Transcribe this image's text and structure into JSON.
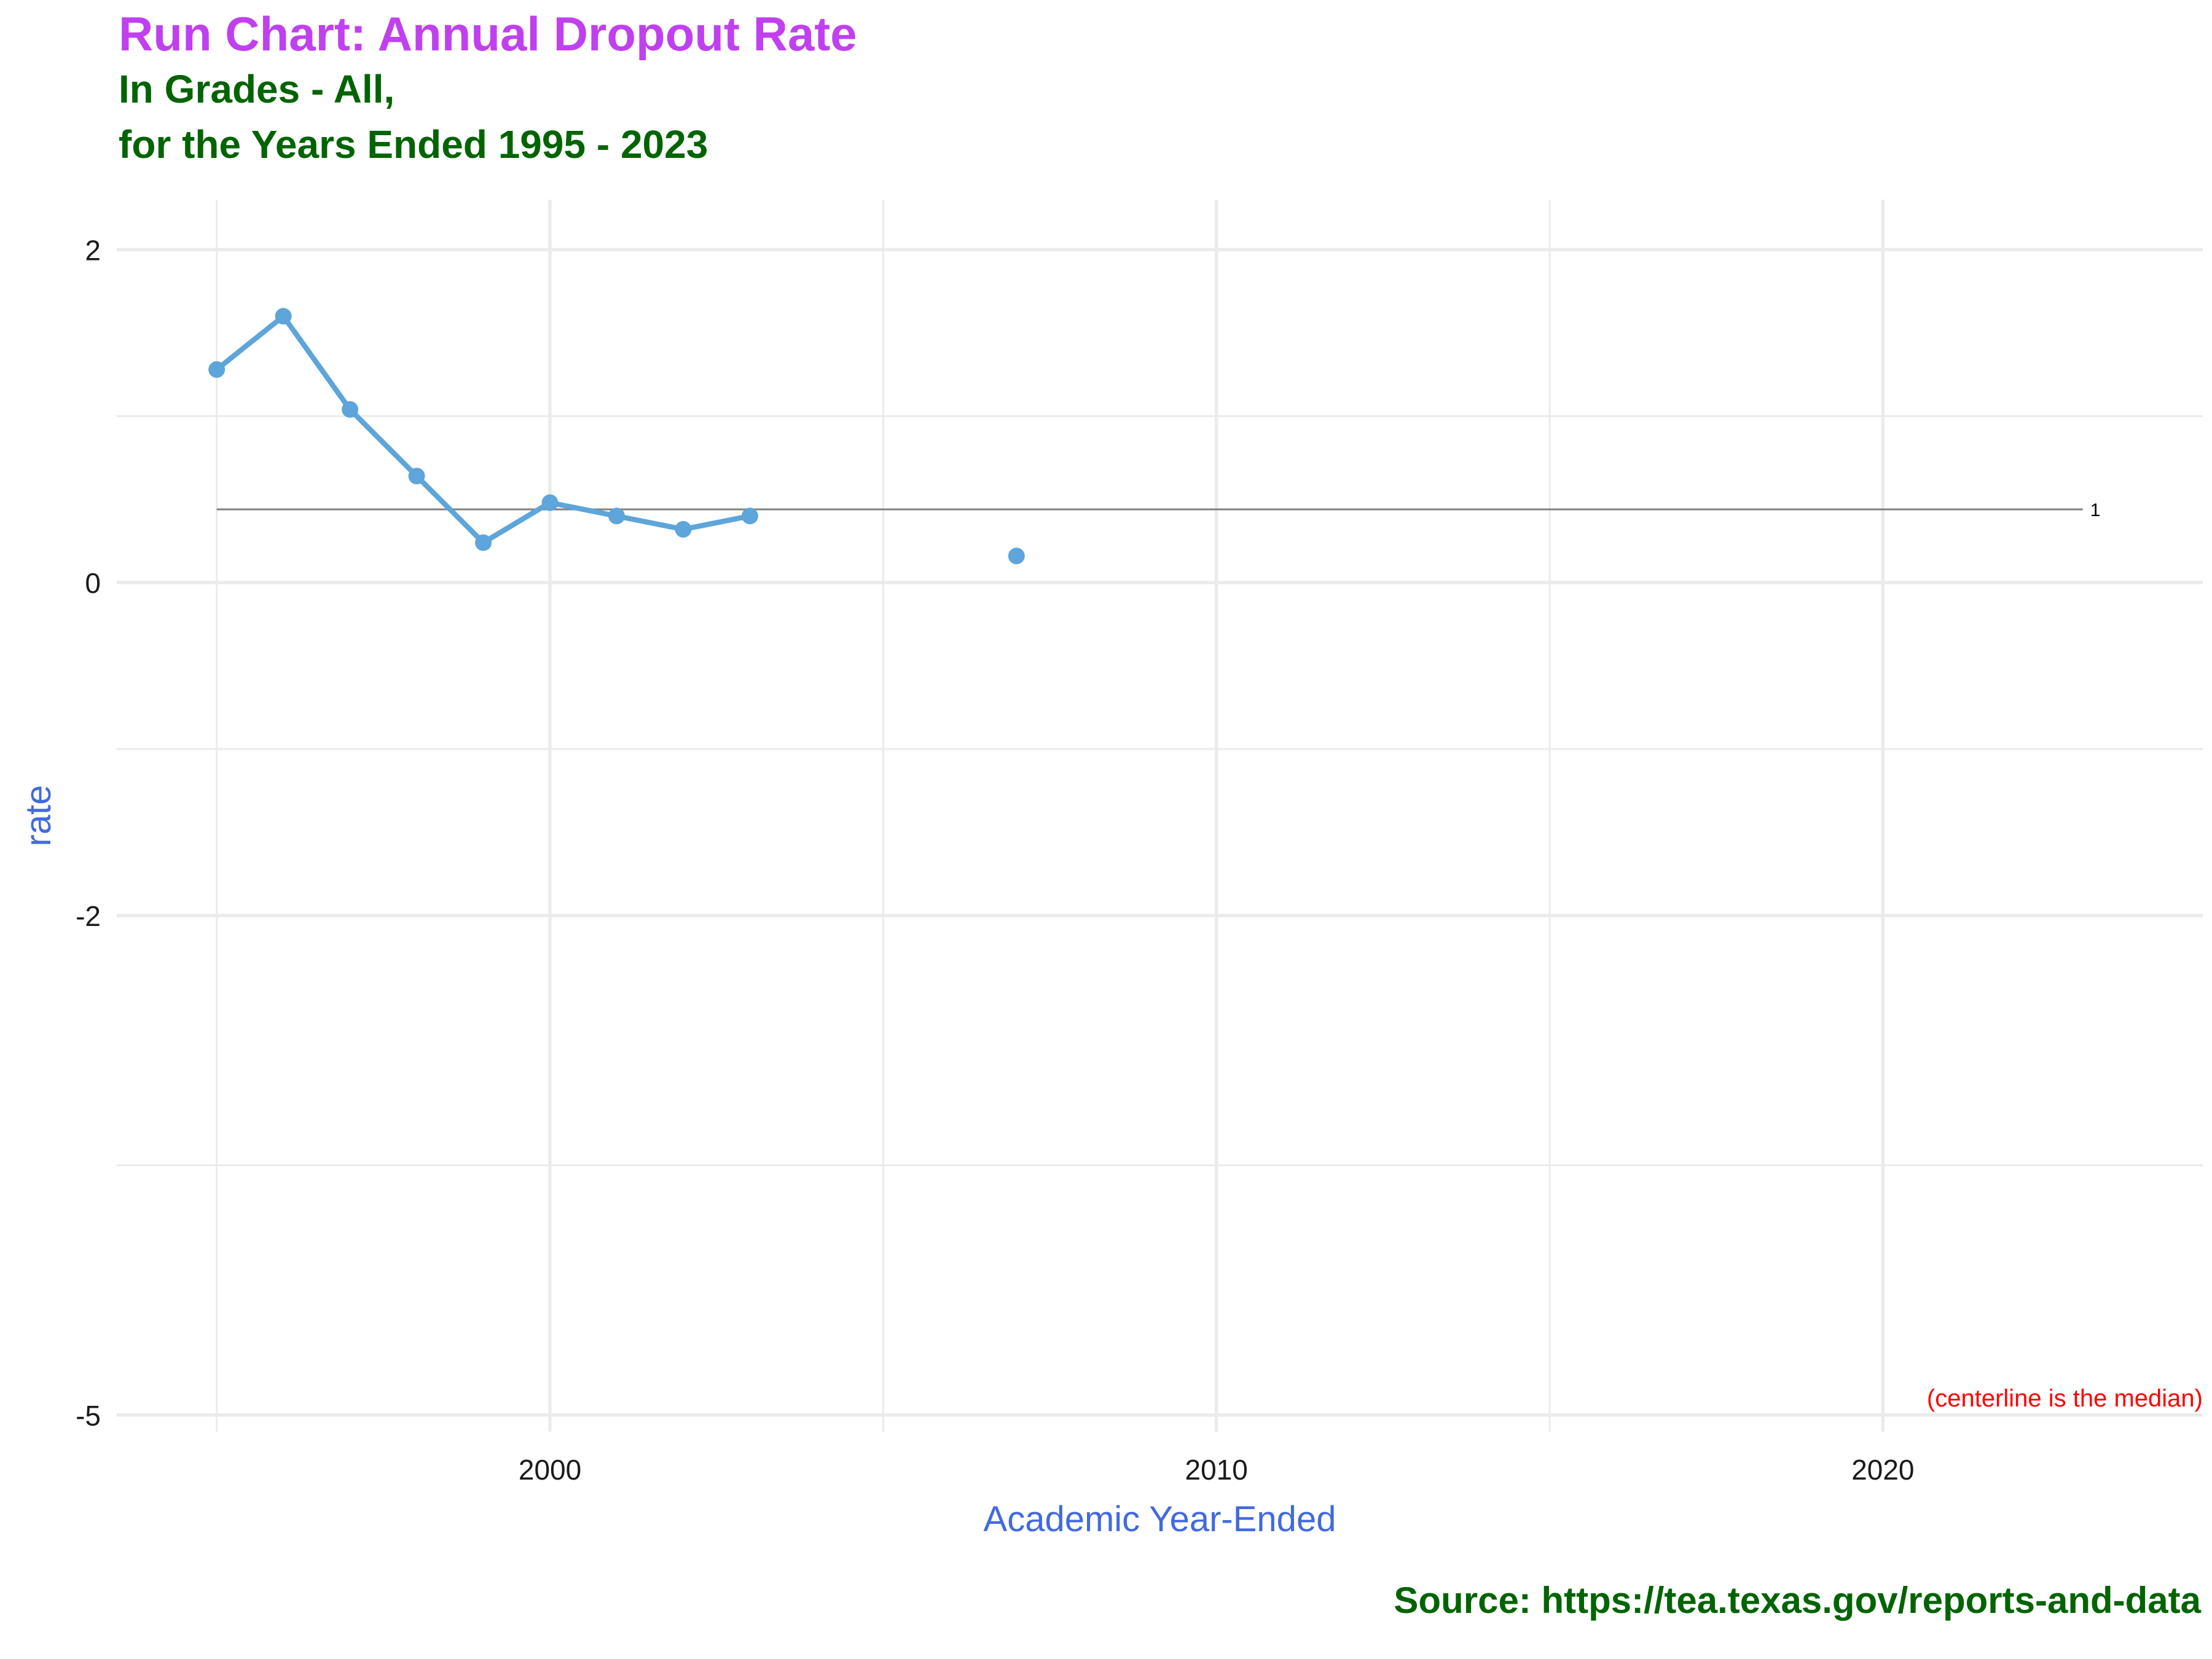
{
  "chart_data": {
    "type": "line",
    "title": "Run Chart: Annual Dropout Rate",
    "subtitle_lines": [
      "In Grades - All,",
      "for the Years Ended 1995 - 2023"
    ],
    "xlabel": "Academic Year-Ended",
    "ylabel": "rate",
    "caption": "Source:  https://tea.texas.gov/reports-and-data",
    "x_ticks": [
      2000,
      2010,
      2020
    ],
    "y_ticks": [
      2,
      0,
      -2,
      -5
    ],
    "xlim": [
      1993.5,
      2024.8
    ],
    "ylim": [
      -5.1,
      2.3
    ],
    "grid": true,
    "series": [
      {
        "color": "#5DA5DA",
        "points": [
          {
            "x": 1995,
            "y": 1.28
          },
          {
            "x": 1996,
            "y": 1.6
          },
          {
            "x": 1997,
            "y": 1.04
          },
          {
            "x": 1998,
            "y": 0.64
          },
          {
            "x": 1999,
            "y": 0.24
          },
          {
            "x": 2000,
            "y": 0.48
          },
          {
            "x": 2001,
            "y": 0.4
          },
          {
            "x": 2002,
            "y": 0.32
          },
          {
            "x": 2003,
            "y": 0.4
          },
          {
            "x": 2007,
            "y": 0.16
          }
        ]
      }
    ],
    "centerline": {
      "value": 0.44,
      "x_start": 1995,
      "x_end": 2023,
      "label": "1",
      "note": "(centerline is the median)",
      "color": "#808080"
    },
    "colors": {
      "title": "#C040F0",
      "subtitle": "#006400",
      "axis_title": "#4169E1",
      "note": "#FF0000",
      "caption": "#006400",
      "grid": "#EBEBEB"
    }
  }
}
